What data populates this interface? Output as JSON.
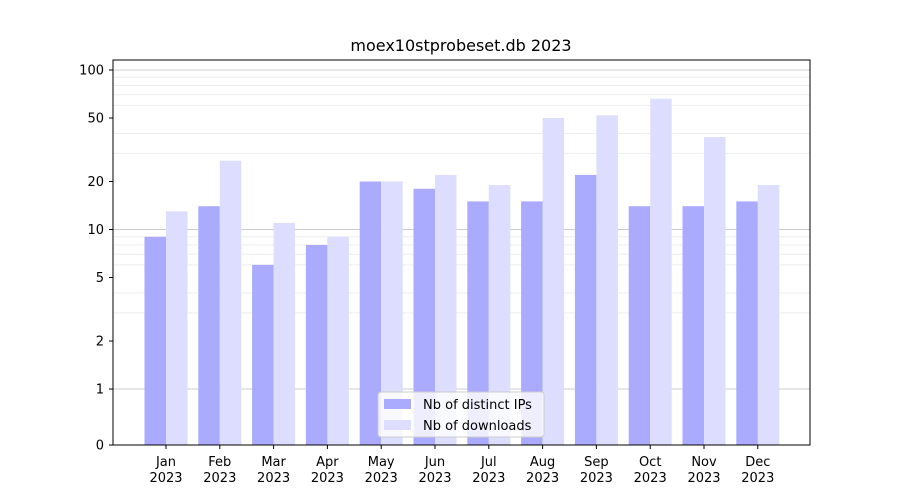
{
  "chart_data": {
    "type": "bar",
    "title": "moex10stprobeset.db 2023",
    "xlabel": "",
    "ylabel": "",
    "y_scale": "symlog",
    "ylim": [
      0,
      120
    ],
    "yticks": [
      {
        "value": 0,
        "label": "0"
      },
      {
        "value": 1,
        "label": "1"
      },
      {
        "value": 2,
        "label": "2"
      },
      {
        "value": 5,
        "label": "5"
      },
      {
        "value": 10,
        "label": "10"
      },
      {
        "value": 20,
        "label": "20"
      },
      {
        "value": 50,
        "label": "50"
      },
      {
        "value": 100,
        "label": "100"
      }
    ],
    "categories": [
      {
        "month": "Jan",
        "year": "2023"
      },
      {
        "month": "Feb",
        "year": "2023"
      },
      {
        "month": "Mar",
        "year": "2023"
      },
      {
        "month": "Apr",
        "year": "2023"
      },
      {
        "month": "May",
        "year": "2023"
      },
      {
        "month": "Jun",
        "year": "2023"
      },
      {
        "month": "Jul",
        "year": "2023"
      },
      {
        "month": "Aug",
        "year": "2023"
      },
      {
        "month": "Sep",
        "year": "2023"
      },
      {
        "month": "Oct",
        "year": "2023"
      },
      {
        "month": "Nov",
        "year": "2023"
      },
      {
        "month": "Dec",
        "year": "2023"
      }
    ],
    "series": [
      {
        "name": "Nb of distinct IPs",
        "color": "#aaaaff",
        "values": [
          9,
          14,
          6,
          8,
          20,
          18,
          15,
          15,
          22,
          14,
          14,
          15
        ]
      },
      {
        "name": "Nb of downloads",
        "color": "#ddddff",
        "values": [
          13,
          27,
          11,
          9,
          20,
          22,
          19,
          50,
          52,
          66,
          38,
          19
        ]
      }
    ],
    "grid": "horizontal",
    "legend_position": "bottom-center"
  }
}
